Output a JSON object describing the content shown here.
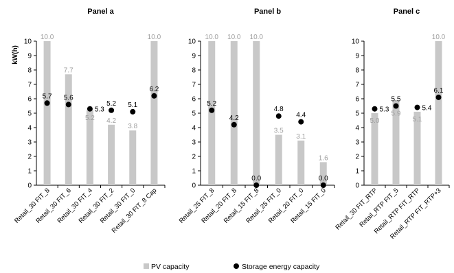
{
  "chart_data": {
    "type": "bar",
    "ylabel": "kW(h)",
    "ylim": [
      0,
      10
    ],
    "yticks": [
      "0",
      "1",
      "2",
      "3",
      "4",
      "5",
      "6",
      "7",
      "8",
      "9",
      "10"
    ],
    "grid": false,
    "legend_position": "bottom",
    "legend": [
      {
        "name": "PV capacity",
        "color": "#c8c8c8",
        "marker": "square"
      },
      {
        "name": "Storage energy capacity",
        "color": "#000000",
        "marker": "circle"
      }
    ],
    "panels": [
      {
        "title": "Panel a",
        "categories": [
          "Retail_30 FIT_8",
          "Retail_30 FIT_6",
          "Retail_30 FIT_4",
          "Retail_30 FIT_2",
          "Retail_30 FIT_0",
          "Retail_30 FIT_8 Cap"
        ],
        "series": [
          {
            "name": "PV capacity",
            "values": [
              10.0,
              7.7,
              5.2,
              4.2,
              3.8,
              10.0
            ],
            "labels": [
              "10.0",
              "7.7",
              "5.2",
              "4.2",
              "3.8",
              "10.0"
            ]
          },
          {
            "name": "Storage energy capacity",
            "values": [
              5.7,
              5.6,
              5.3,
              5.2,
              5.1,
              6.2
            ],
            "labels": [
              "5.7",
              "5.6",
              "5.3",
              "5.2",
              "5.1",
              "6.2"
            ]
          }
        ]
      },
      {
        "title": "Panel b",
        "categories": [
          "Retail_25 FIT_8",
          "Retail_20 FIT_8",
          "Retail_15 FIT_8",
          "Retail_25 FIT_0",
          "Retail_20 FIT_0",
          "Retail_15 FIT_0"
        ],
        "series": [
          {
            "name": "PV capacity",
            "values": [
              10.0,
              10.0,
              10.0,
              3.5,
              3.1,
              1.6
            ],
            "labels": [
              "10.0",
              "10.0",
              "10.0",
              "3.5",
              "3.1",
              "1.6"
            ]
          },
          {
            "name": "Storage energy capacity",
            "values": [
              5.2,
              4.2,
              0.0,
              4.8,
              4.4,
              0.0
            ],
            "labels": [
              "5.2",
              "4.2",
              "0.0",
              "4.8",
              "4.4",
              "0.0"
            ]
          }
        ]
      },
      {
        "title": "Panel c",
        "categories": [
          "Retail_30 FIT_RTP",
          "Retail_RTP FIT_5",
          "Retail_RTP FIT_RTP",
          "Retail_RTP FIT_RTP+3"
        ],
        "series": [
          {
            "name": "PV capacity",
            "values": [
              5.0,
              5.9,
              5.1,
              10.0
            ],
            "labels": [
              "5.0",
              "5.9",
              "5.1",
              "10.0"
            ]
          },
          {
            "name": "Storage energy capacity",
            "values": [
              5.3,
              5.5,
              5.4,
              6.1
            ],
            "labels": [
              "5.3",
              "5.5",
              "5.4",
              "6.1"
            ]
          }
        ]
      }
    ]
  }
}
